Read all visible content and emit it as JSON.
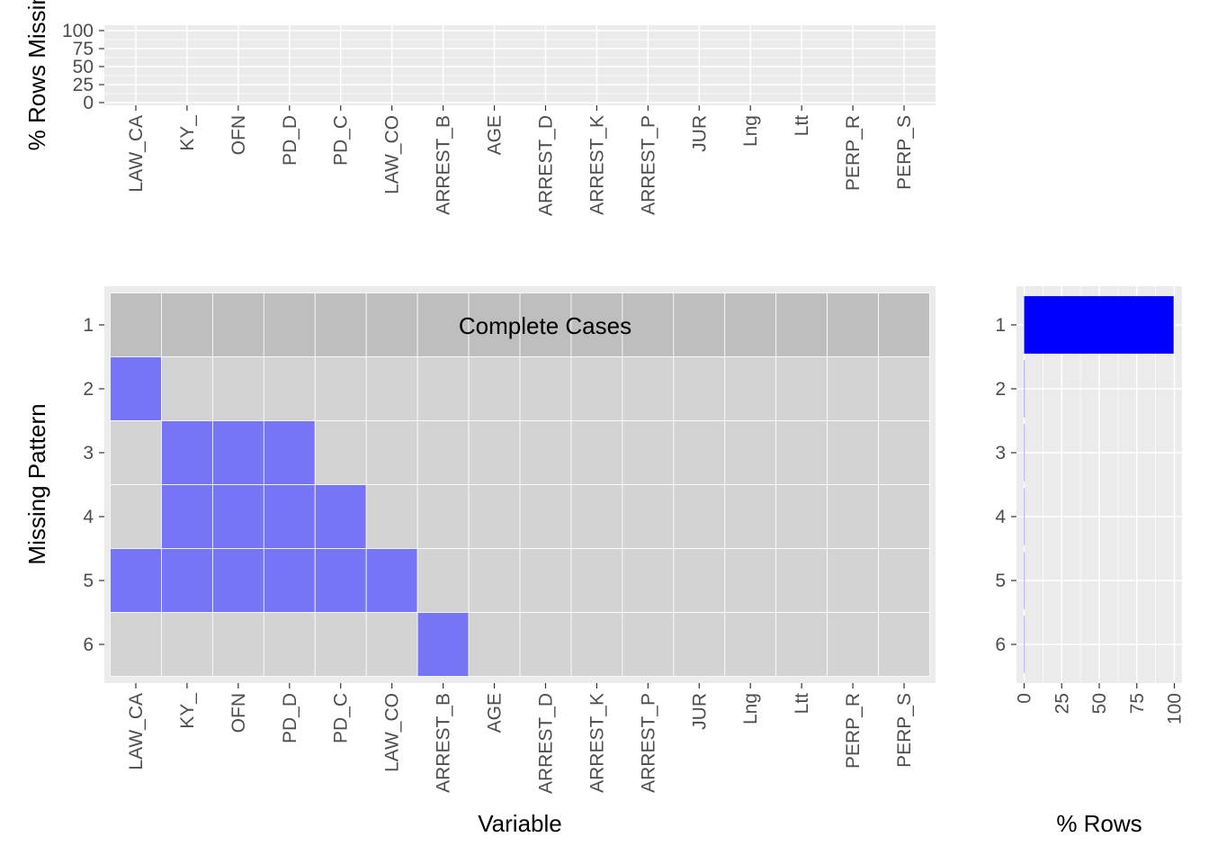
{
  "chart_data": [
    {
      "type": "bar",
      "panel": "top",
      "ylabel": "% Rows Missing",
      "ylim": [
        0,
        100
      ],
      "yticks": [
        "0",
        "25",
        "50",
        "75",
        "100"
      ],
      "categories": [
        "LAW_CA",
        "KY_",
        "OFN",
        "PD_D",
        "PD_C",
        "LAW_CO",
        "ARREST_B",
        "AGE",
        "ARREST_D",
        "ARREST_K",
        "ARREST_P",
        "JUR",
        "Lng",
        "Ltt",
        "PERP_R",
        "PERP_S"
      ],
      "values": [
        0,
        0,
        0,
        0,
        0,
        0,
        0,
        0,
        0,
        0,
        0,
        0,
        0,
        0,
        0,
        0
      ]
    },
    {
      "type": "heatmap",
      "panel": "main",
      "xlabel": "Variable",
      "ylabel": "Missing Pattern",
      "annotation": "Complete Cases",
      "columns": [
        "LAW_CA",
        "KY_",
        "OFN",
        "PD_D",
        "PD_C",
        "LAW_CO",
        "ARREST_B",
        "AGE",
        "ARREST_D",
        "ARREST_K",
        "ARREST_P",
        "JUR",
        "Lng",
        "Ltt",
        "PERP_R",
        "PERP_S"
      ],
      "rows": [
        "1",
        "2",
        "3",
        "4",
        "5",
        "6"
      ],
      "missing": [
        [
          0,
          0,
          0,
          0,
          0,
          0,
          0,
          0,
          0,
          0,
          0,
          0,
          0,
          0,
          0,
          0
        ],
        [
          1,
          0,
          0,
          0,
          0,
          0,
          0,
          0,
          0,
          0,
          0,
          0,
          0,
          0,
          0,
          0
        ],
        [
          0,
          1,
          1,
          1,
          0,
          0,
          0,
          0,
          0,
          0,
          0,
          0,
          0,
          0,
          0,
          0
        ],
        [
          0,
          1,
          1,
          1,
          1,
          0,
          0,
          0,
          0,
          0,
          0,
          0,
          0,
          0,
          0,
          0
        ],
        [
          1,
          1,
          1,
          1,
          1,
          1,
          0,
          0,
          0,
          0,
          0,
          0,
          0,
          0,
          0,
          0
        ],
        [
          0,
          0,
          0,
          0,
          0,
          0,
          1,
          0,
          0,
          0,
          0,
          0,
          0,
          0,
          0,
          0
        ]
      ],
      "colors": {
        "complete_row": "#bebebe",
        "not_missing": "#d3d3d3",
        "missing": "#7575f5",
        "grid": "#ffffff"
      }
    },
    {
      "type": "bar",
      "panel": "right",
      "orientation": "horizontal",
      "xlabel": "% Rows",
      "xlim": [
        0,
        100
      ],
      "xticks": [
        "0",
        "25",
        "50",
        "75",
        "100"
      ],
      "categories": [
        "1",
        "2",
        "3",
        "4",
        "5",
        "6"
      ],
      "values": [
        99.5,
        0.4,
        0.02,
        0.02,
        0.02,
        0.02
      ],
      "colors": {
        "highlight": "#0000ff",
        "other": "#7575f5"
      }
    }
  ],
  "panel_background": "#ebebeb"
}
